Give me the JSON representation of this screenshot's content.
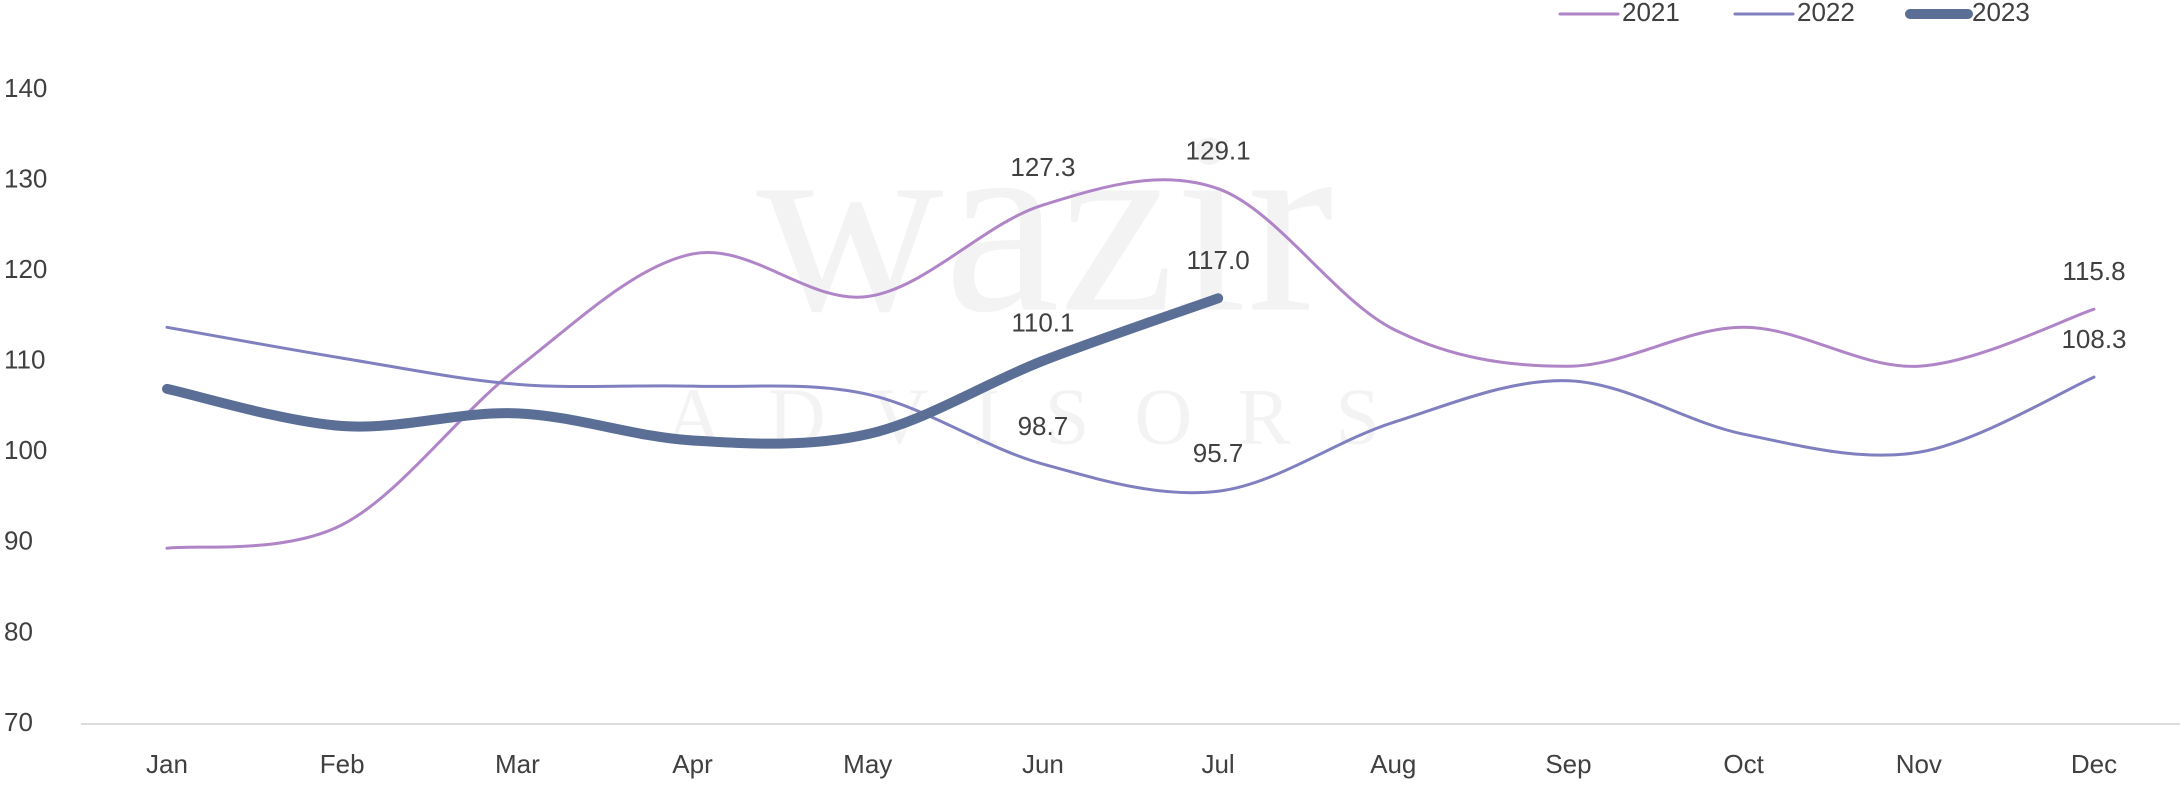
{
  "chart_data": {
    "type": "line",
    "categories": [
      "Jan",
      "Feb",
      "Mar",
      "Apr",
      "May",
      "Jun",
      "Jul",
      "Aug",
      "Sep",
      "Oct",
      "Nov",
      "Dec"
    ],
    "series": [
      {
        "name": "2021",
        "color": "#b085c8",
        "width": 3,
        "values": [
          89.4,
          92.0,
          109.3,
          121.9,
          117.2,
          127.3,
          129.1,
          113.6,
          109.5,
          113.8,
          109.5,
          115.8
        ],
        "value_labels": [
          null,
          null,
          null,
          null,
          null,
          "127.3",
          "129.1",
          null,
          null,
          null,
          null,
          "115.8"
        ]
      },
      {
        "name": "2022",
        "color": "#8080c0",
        "width": 3,
        "values": [
          113.8,
          110.4,
          107.5,
          107.3,
          106.4,
          98.7,
          95.7,
          103.3,
          107.9,
          102.0,
          100.0,
          108.3
        ],
        "value_labels": [
          null,
          null,
          null,
          null,
          null,
          "98.7",
          "95.7",
          null,
          null,
          null,
          null,
          "108.3"
        ]
      },
      {
        "name": "2023",
        "color": "#5a6e96",
        "width": 10,
        "values": [
          107.0,
          102.9,
          104.3,
          101.3,
          102.0,
          110.1,
          117.0,
          null,
          null,
          null,
          null,
          null
        ],
        "value_labels": [
          null,
          null,
          null,
          null,
          null,
          "110.1",
          "117.0",
          null,
          null,
          null,
          null,
          null
        ]
      }
    ],
    "ylim": [
      70,
      140
    ],
    "yticks": [
      70,
      80,
      90,
      100,
      110,
      120,
      130,
      140
    ],
    "legend": "top-right",
    "smooth": true,
    "watermark": {
      "title": "wazir",
      "subtitle": "ADVISORS"
    }
  }
}
